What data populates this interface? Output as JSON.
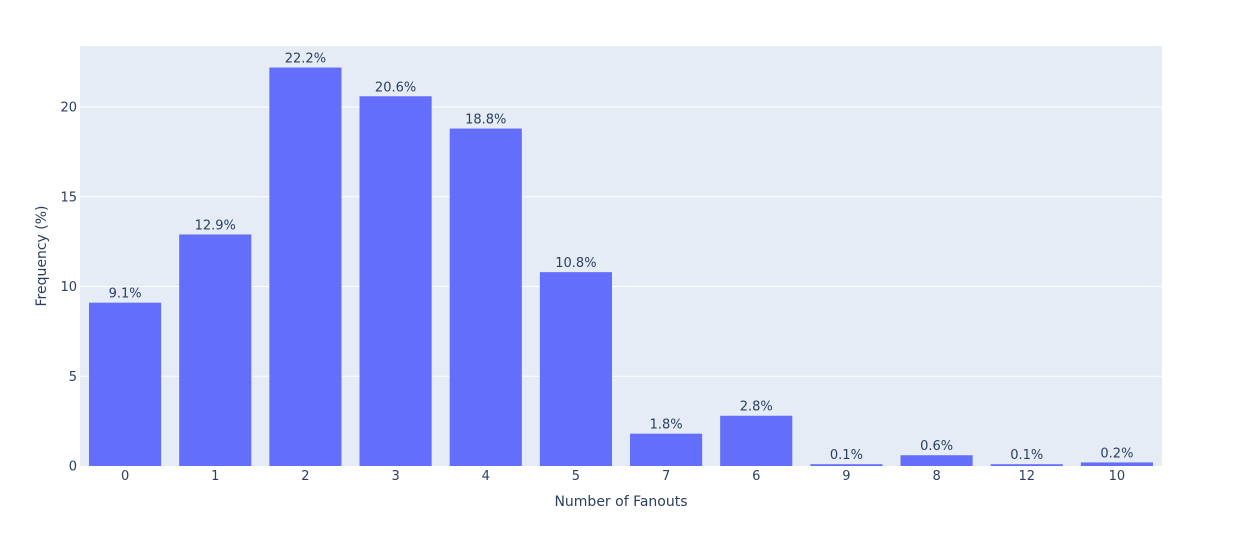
{
  "chart_data": {
    "type": "bar",
    "title": "",
    "xlabel": "Number of Fanouts",
    "ylabel": "Frequency (%)",
    "categories": [
      "0",
      "1",
      "2",
      "3",
      "4",
      "5",
      "7",
      "6",
      "9",
      "8",
      "12",
      "10"
    ],
    "values": [
      9.1,
      12.9,
      22.2,
      20.6,
      18.8,
      10.8,
      1.8,
      2.8,
      0.1,
      0.6,
      0.1,
      0.2
    ],
    "bar_labels": [
      "9.1%",
      "12.9%",
      "22.2%",
      "20.6%",
      "18.8%",
      "10.8%",
      "1.8%",
      "2.8%",
      "0.1%",
      "0.6%",
      "0.1%",
      "0.2%"
    ],
    "yticks": [
      0,
      5,
      10,
      15,
      20
    ],
    "ylim": [
      0,
      23.4
    ],
    "grid": true,
    "bar_color": "#636efa",
    "plot_bg": "#e5ecf6",
    "grid_color": "#ffffff",
    "text_color": "#2a3f5f"
  }
}
